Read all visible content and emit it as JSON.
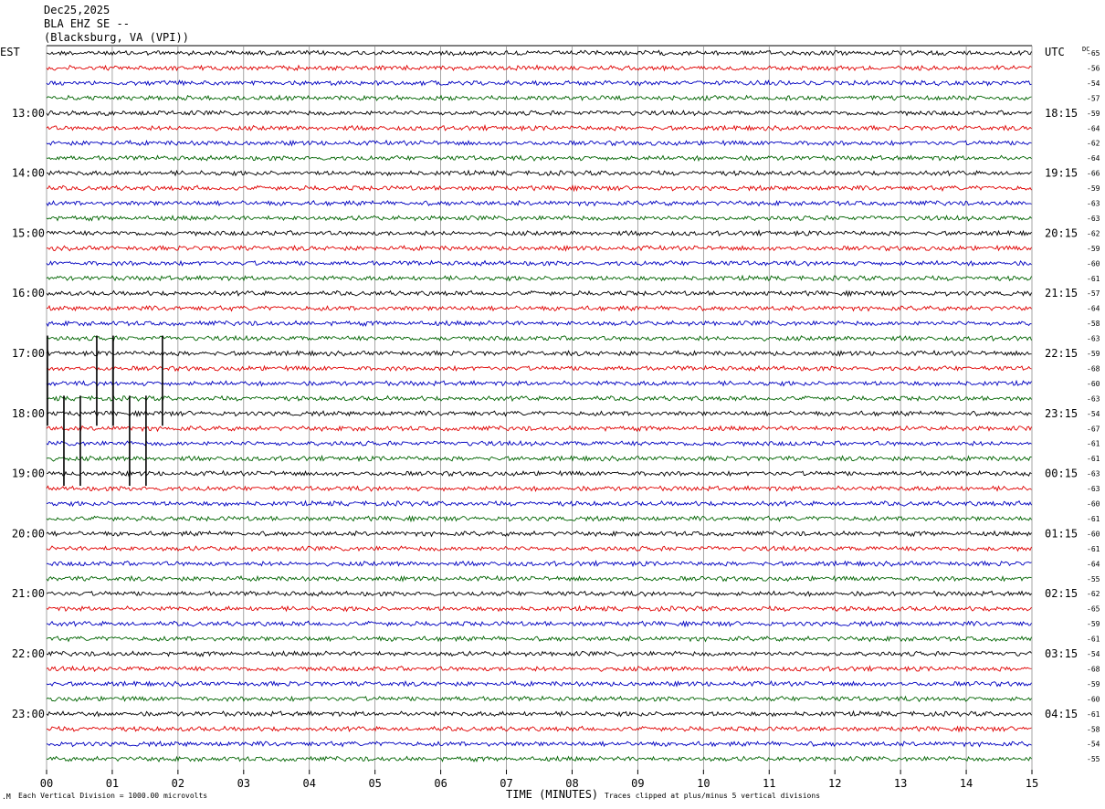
{
  "header": {
    "date": "Dec25,2025",
    "station": "BLA EHZ SE --",
    "location": "(Blacksburg, VA (VPI))"
  },
  "left_timezone": "EST",
  "right_timezone": "UTC",
  "dc_label": "DC",
  "footer": {
    "vertical_division": "Each Vertical Division = 1000.00 microvolts",
    "xlabel": "TIME (MINUTES)",
    "clip_note": "Traces clipped at plus/minus 5 vertical divisions"
  },
  "colors": {
    "trace_cycle": [
      "#000000",
      "#e00000",
      "#0000c0",
      "#006400"
    ],
    "grid": "#808080"
  },
  "chart_data": {
    "type": "line",
    "title": "BLA EHZ SE --",
    "xlabel": "TIME (MINUTES)",
    "xlim": [
      0,
      15
    ],
    "x_ticks": [
      "00",
      "01",
      "02",
      "03",
      "04",
      "05",
      "06",
      "07",
      "08",
      "09",
      "10",
      "11",
      "12",
      "13",
      "14",
      "15"
    ],
    "rows_per_hour": 4,
    "minutes_per_row": 15,
    "num_rows": 48,
    "start_row_offset_hours": -4,
    "left_hour_labels": [
      {
        "row": 4,
        "label": "13:00"
      },
      {
        "row": 8,
        "label": "14:00"
      },
      {
        "row": 12,
        "label": "15:00"
      },
      {
        "row": 16,
        "label": "16:00"
      },
      {
        "row": 20,
        "label": "17:00"
      },
      {
        "row": 24,
        "label": "18:00"
      },
      {
        "row": 28,
        "label": "19:00"
      },
      {
        "row": 32,
        "label": "20:00"
      },
      {
        "row": 36,
        "label": "21:00"
      },
      {
        "row": 40,
        "label": "22:00"
      },
      {
        "row": 44,
        "label": "23:00"
      }
    ],
    "right_hour_labels": [
      {
        "row": 4,
        "label": "18:15"
      },
      {
        "row": 8,
        "label": "19:15"
      },
      {
        "row": 12,
        "label": "20:15"
      },
      {
        "row": 16,
        "label": "21:15"
      },
      {
        "row": 20,
        "label": "22:15"
      },
      {
        "row": 24,
        "label": "23:15"
      },
      {
        "row": 28,
        "label": "00:15"
      },
      {
        "row": 32,
        "label": "01:15"
      },
      {
        "row": 36,
        "label": "02:15"
      },
      {
        "row": 40,
        "label": "03:15"
      },
      {
        "row": 44,
        "label": "04:15"
      }
    ],
    "dc_offsets": [
      "-65",
      "-56",
      "-54",
      "-57",
      "-59",
      "-64",
      "-62",
      "-64",
      "-66",
      "-59",
      "-63",
      "-63",
      "-62",
      "-59",
      "-60",
      "-61",
      "-57",
      "-64",
      "-58",
      "-63",
      "-59",
      "-68",
      "-60",
      "-63",
      "-54",
      "-67",
      "-61",
      "-61",
      "-63",
      "-63",
      "-60",
      "-61",
      "-60",
      "-61",
      "-64",
      "-55",
      "-62",
      "-65",
      "-59",
      "-61",
      "-54",
      "-68",
      "-59",
      "-60",
      "-61",
      "-58",
      "-54",
      "-55"
    ],
    "clipped_spikes": [
      {
        "minute": 0.0,
        "from_row": 19,
        "to_row": 25
      },
      {
        "minute": 0.25,
        "from_row": 23,
        "to_row": 29
      },
      {
        "minute": 0.5,
        "from_row": 23,
        "to_row": 29
      },
      {
        "minute": 0.75,
        "from_row": 19,
        "to_row": 25
      },
      {
        "minute": 1.0,
        "from_row": 19,
        "to_row": 25
      },
      {
        "minute": 1.25,
        "from_row": 23,
        "to_row": 29
      },
      {
        "minute": 1.5,
        "from_row": 23,
        "to_row": 29
      },
      {
        "minute": 1.75,
        "from_row": 19,
        "to_row": 25
      }
    ]
  }
}
